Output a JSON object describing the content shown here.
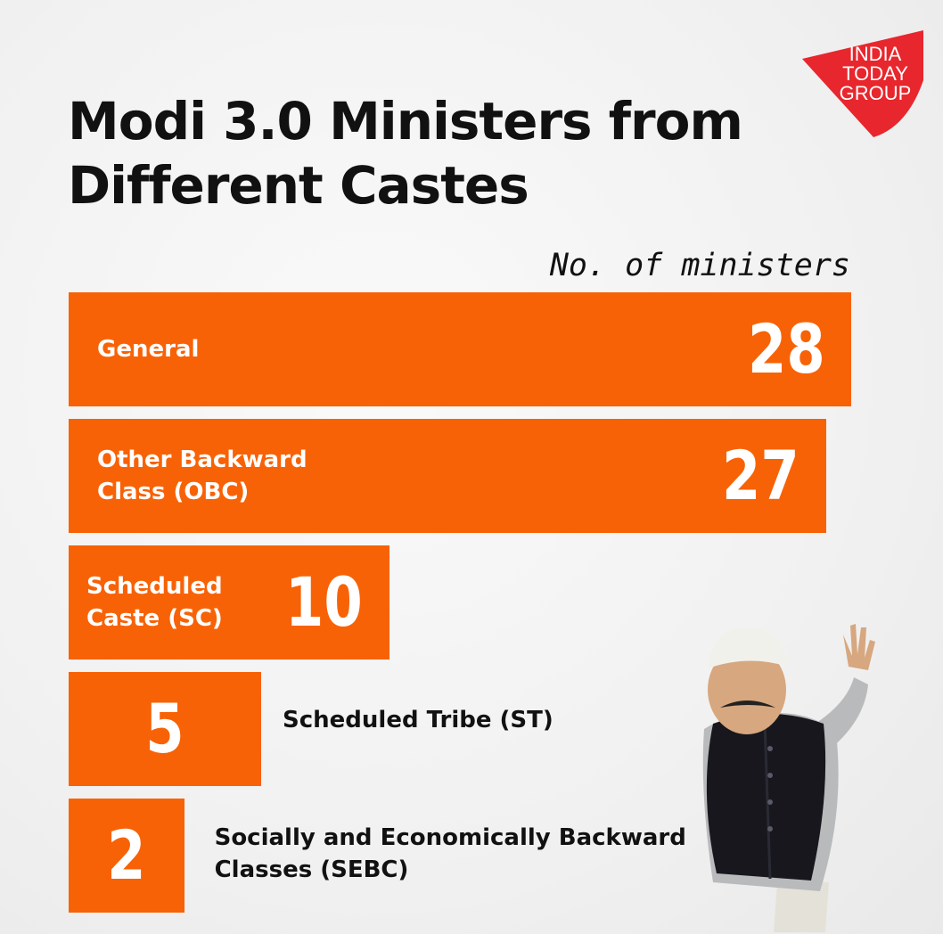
{
  "brand": {
    "line1": "INDIA",
    "line2": "TODAY",
    "line3": "GROUP"
  },
  "title": "Modi 3.0 Ministers from Different Castes",
  "column_header": "No. of ministers",
  "colors": {
    "bar": "#f86206",
    "logo": "#e8262d"
  },
  "chart_data": {
    "type": "bar",
    "orientation": "horizontal",
    "categories": [
      "General",
      "Other Backward Class (OBC)",
      "Scheduled Caste (SC)",
      "Scheduled Tribe (ST)",
      "Socially and Economically Backward Classes (SEBC)"
    ],
    "values": [
      28,
      27,
      10,
      5,
      2
    ]
  }
}
